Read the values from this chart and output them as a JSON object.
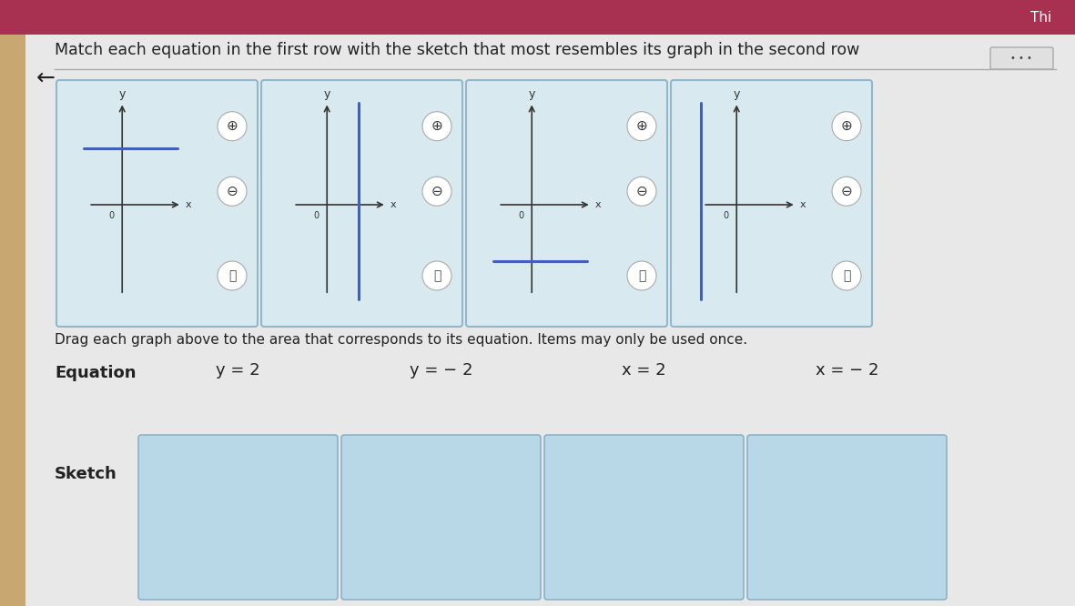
{
  "title_text": "Match each equation in the first row with the sketch that most resembles its graph in the second row",
  "instruction_text": "Drag each graph above to the area that corresponds to its equation. Items may only be used once.",
  "bg_color": "#d4d4d4",
  "header_bg": "#a83050",
  "left_bar_color": "#c8a870",
  "card_bg": "#d8eaf0",
  "card_border": "#90b8cc",
  "sketch_box_bg": "#b8d8e8",
  "sketch_box_border": "#80aac0",
  "equations": [
    "y = 2",
    "y = − 2",
    "x = 2",
    "x = − 2"
  ],
  "graphs": [
    {
      "type": "horizontal",
      "positive": true
    },
    {
      "type": "vertical",
      "positive": true
    },
    {
      "type": "horizontal",
      "positive": false
    },
    {
      "type": "vertical",
      "positive": false
    }
  ],
  "line_color": "#4060c0",
  "axis_color": "#333333",
  "text_color": "#222222",
  "equation_fontsize": 13,
  "title_fontsize": 12.5
}
